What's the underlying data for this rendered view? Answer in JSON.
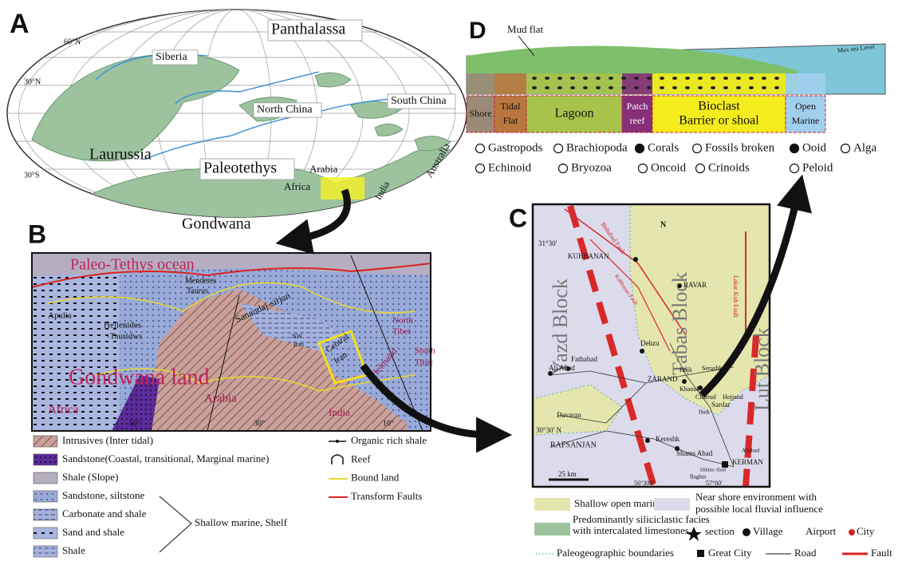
{
  "panel_a": {
    "label": "A",
    "latitudes": [
      "60°N",
      "30°N",
      "30°S"
    ],
    "regions": [
      "Siberia",
      "Panthalassa",
      "North China",
      "South China",
      "Laurussia",
      "Paleotethys",
      "Arabia",
      "Africa",
      "Australia",
      "India",
      "Gondwana"
    ]
  },
  "panel_d": {
    "label": "D",
    "mud_flat": "Mud flat",
    "sea_level": "Max sea Level",
    "zones": [
      [
        "Shore"
      ],
      [
        "Tidal",
        "Flat"
      ],
      [
        "Lagoon"
      ],
      [
        "Patch",
        "reef"
      ],
      [
        "Bioclast",
        "Barrier or shoal"
      ],
      [
        "Open",
        "Marine"
      ]
    ],
    "legend": [
      "Gastropods",
      "Brachiopoda",
      "Corals",
      "Fossils broken",
      "Ooid",
      "Alga",
      "Echinoid",
      "Bryozoa",
      "Oncoid",
      "Crinoids",
      "Peloid"
    ]
  },
  "panel_b": {
    "label": "B",
    "map_labels": [
      "Paleo-Tethys ocean",
      "Menderes",
      "Taurus",
      "Sanandaj-sirjan",
      "Apulia",
      "Hellenides",
      "-Tauridws",
      "NW",
      "Iran",
      "Central",
      "Iran",
      "North",
      "Tibet",
      "South",
      "Tibet",
      "Helmand",
      "Gondwana land",
      "Arabia",
      "India",
      "Africa"
    ],
    "degrees": [
      "50°",
      "30°",
      "10°"
    ],
    "lithology": [
      "Intrusives (Inter tidal)",
      "Sandstone(Coastal, transitional, Marginal marine)",
      "Shale (Slope)",
      "Sandstone, siltstone",
      "Carbonate and shale",
      "Sand and shale",
      "Shale"
    ],
    "group": "Shallow marine, Shelf",
    "symbols": [
      "Organic rich shale",
      "Reef",
      "Bound land",
      "Transform Faults"
    ]
  },
  "panel_c": {
    "label": "C",
    "map_labels": [
      "N",
      "Behabad Fault",
      "31°30'",
      "KUHBANAN",
      "Yazd Block",
      "Tabas Block",
      "Lut Block",
      "RAVAR",
      "Lakar Kuh Fault",
      "Kuhbanan Fault",
      "Dehzu",
      "Fathabad",
      "Ali Abad",
      "ZARAND",
      "Hojk",
      "Serashk",
      "Khanuk",
      "Chatrud",
      "Hojjand",
      "Hutk",
      "Sardar",
      "Davaran",
      "30°30' N",
      "RAFSANJAN",
      "Kereshk",
      "Shams Abad",
      "KERMAN",
      "25 km",
      "56°30'E",
      "57°00'",
      "Baghin",
      "Ekhtiar Abad",
      "Aliabad"
    ],
    "legend": {
      "shallow": "Shallow open marine",
      "near_shore": [
        "Near shore environment with",
        "possible local fluvial influence"
      ],
      "siliciclastic": [
        "Predominantly siliciclastic facies",
        "with intercalated limestones"
      ],
      "symbols": [
        "section",
        "Village",
        "Airport",
        "City",
        "Paleogeographic boundaries",
        "Great City",
        "Road",
        "Fault"
      ]
    }
  }
}
